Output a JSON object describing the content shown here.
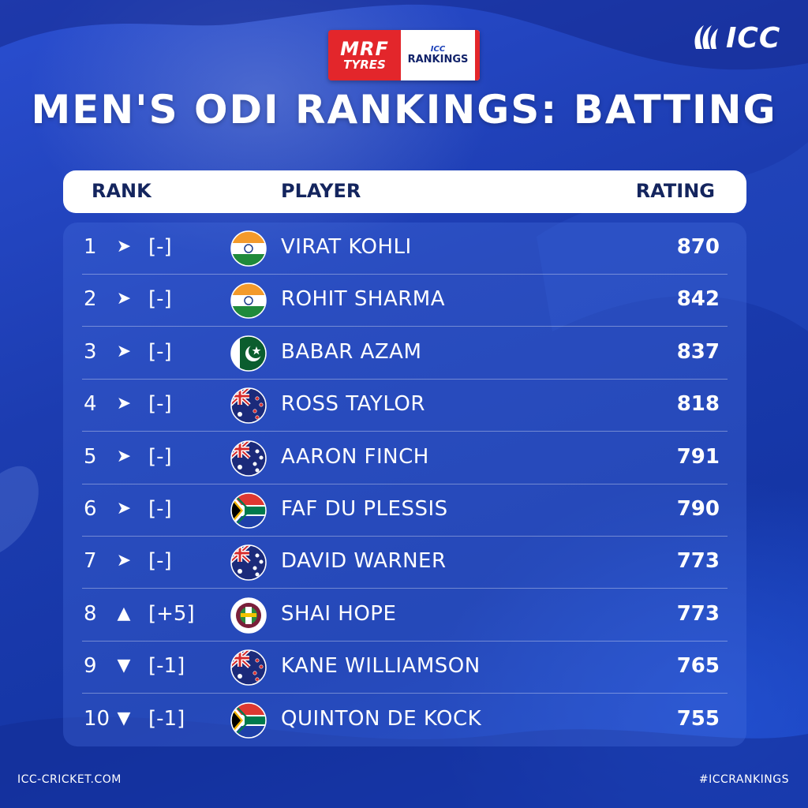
{
  "sponsor": {
    "mrf": "MRF",
    "tyres": "TYRES",
    "icc_small": "ICC",
    "rankings": "RANKINGS"
  },
  "logo": {
    "text": "ICC"
  },
  "title": "MEN'S ODI RANKINGS: BATTING",
  "columns": {
    "rank": "RANK",
    "player": "PLAYER",
    "rating": "RATING"
  },
  "arrow_glyphs": {
    "none": "➤",
    "up": "▲",
    "down": "▼"
  },
  "rows": [
    {
      "rank": "1",
      "movement": "none",
      "change": "[-]",
      "country": "India",
      "player": "VIRAT KOHLI",
      "rating": "870"
    },
    {
      "rank": "2",
      "movement": "none",
      "change": "[-]",
      "country": "India",
      "player": "ROHIT SHARMA",
      "rating": "842"
    },
    {
      "rank": "3",
      "movement": "none",
      "change": "[-]",
      "country": "Pakistan",
      "player": "BABAR AZAM",
      "rating": "837"
    },
    {
      "rank": "4",
      "movement": "none",
      "change": "[-]",
      "country": "New Zealand",
      "player": "ROSS TAYLOR",
      "rating": "818"
    },
    {
      "rank": "5",
      "movement": "none",
      "change": "[-]",
      "country": "Australia",
      "player": "AARON FINCH",
      "rating": "791"
    },
    {
      "rank": "6",
      "movement": "none",
      "change": "[-]",
      "country": "South Africa",
      "player": "FAF DU PLESSIS",
      "rating": "790"
    },
    {
      "rank": "7",
      "movement": "none",
      "change": "[-]",
      "country": "Australia",
      "player": "DAVID WARNER",
      "rating": "773"
    },
    {
      "rank": "8",
      "movement": "up",
      "change": "[+5]",
      "country": "West Indies",
      "player": "SHAI HOPE",
      "rating": "773"
    },
    {
      "rank": "9",
      "movement": "down",
      "change": "[-1]",
      "country": "New Zealand",
      "player": "KANE WILLIAMSON",
      "rating": "765"
    },
    {
      "rank": "10",
      "movement": "down",
      "change": "[-1]",
      "country": "South Africa",
      "player": "QUINTON DE KOCK",
      "rating": "755"
    }
  ],
  "footer": {
    "website": "ICC-CRICKET.COM",
    "hashtag": "#ICCRANKINGS"
  }
}
